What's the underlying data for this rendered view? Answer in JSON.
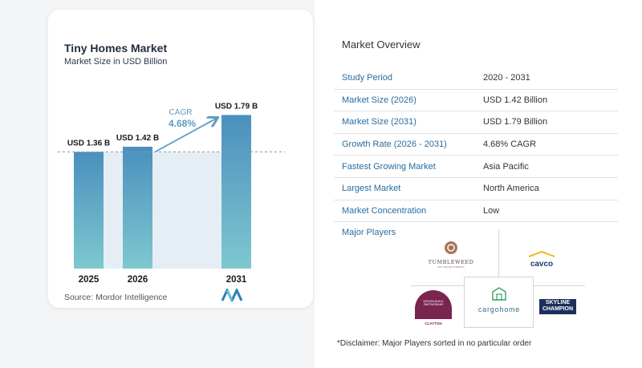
{
  "chart": {
    "title": "Tiny Homes Market",
    "subtitle": "Market Size in USD Billion",
    "source": "Source:  Mordor Intelligence",
    "cagr_label": "CAGR",
    "cagr_value": "4.68%",
    "colors": {
      "bar_top": "#4a90be",
      "bar_bottom": "#7ec8cf",
      "band": "#e6eef5",
      "arrow": "#5a9bc4",
      "label": "#1a1a1a"
    }
  },
  "chart_data": {
    "type": "bar",
    "title": "Tiny Homes Market",
    "subtitle": "Market Size in USD Billion",
    "categories": [
      "2025",
      "2026",
      "2031"
    ],
    "values": [
      1.36,
      1.42,
      1.79
    ],
    "data_labels": [
      "USD 1.36 B",
      "USD 1.42 B",
      "USD 1.79 B"
    ],
    "ylim": [
      0,
      1.85
    ],
    "grid": false,
    "annotation": {
      "text": "CAGR",
      "value": "4.68%"
    }
  },
  "overview": {
    "title": "Market Overview",
    "rows": [
      {
        "key": "Study Period",
        "value": "2020 - 2031"
      },
      {
        "key": "Market Size (2026)",
        "value": "USD 1.42 Billion"
      },
      {
        "key": "Market Size (2031)",
        "value": "USD 1.79 Billion"
      },
      {
        "key": "Growth Rate (2026 - 2031)",
        "value": "4.68% CAGR"
      },
      {
        "key": "Fastest Growing Market",
        "value": "Asia Pacific"
      },
      {
        "key": "Largest Market",
        "value": "North America"
      },
      {
        "key": "Market Concentration",
        "value": "Low"
      }
    ]
  },
  "players": {
    "title": "Major Players",
    "logos": {
      "tumbleweed": "TUMBLEWEED",
      "tumbleweed_sub": "TINY HOUSE COMPANY",
      "cavco": "cavco",
      "clayton": "CLAYTON",
      "clayton_top": "DESIGN-BUILD PARTNERSHIP",
      "cargohome": "cargohome",
      "skyline_1": "SKYLINE",
      "skyline_2": "CHAMPION"
    }
  },
  "disclaimer": "*Disclaimer: Major Players sorted in no particular order"
}
